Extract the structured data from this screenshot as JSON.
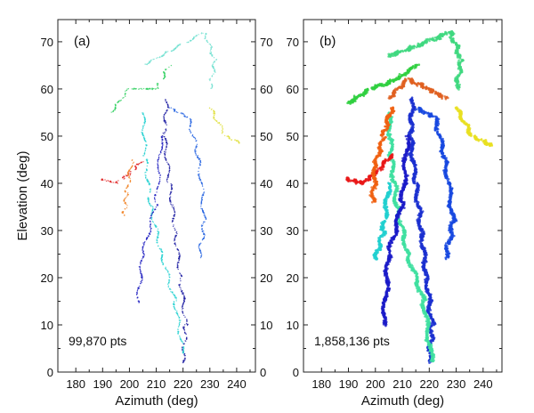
{
  "chart_data": [
    {
      "type": "scatter",
      "panel_label": "(a)",
      "annotation": "99,870 pts",
      "xlabel": "Azimuth (deg)",
      "ylabel": "Elevation (deg)",
      "xlim": [
        173.3,
        247
      ],
      "ylim": [
        0,
        74.7
      ],
      "xticks": [
        180,
        190,
        200,
        210,
        220,
        230,
        240
      ],
      "yticks": [
        0,
        10,
        20,
        30,
        40,
        50,
        60,
        70
      ],
      "right_yticks": true,
      "grid": false,
      "colormap": "jet",
      "branches": [
        {
          "color": "#1a1aa0",
          "points": [
            [
              220,
              2
            ],
            [
              221,
              10
            ],
            [
              219,
              20
            ],
            [
              217,
              30
            ],
            [
              215,
              40
            ],
            [
              213,
              50
            ],
            [
              214,
              58
            ]
          ]
        },
        {
          "color": "#20d0d0",
          "points": [
            [
              220,
              4
            ],
            [
              217,
              15
            ],
            [
              212,
              25
            ],
            [
              208,
              35
            ],
            [
              206,
              45
            ],
            [
              205,
              55
            ]
          ]
        },
        {
          "color": "#e02020",
          "points": [
            [
              205,
              45
            ],
            [
              200,
              42
            ],
            [
              195,
              40
            ],
            [
              189,
              41
            ]
          ]
        },
        {
          "color": "#f08020",
          "points": [
            [
              201,
              45
            ],
            [
              199,
              38
            ],
            [
              198,
              33
            ]
          ]
        },
        {
          "color": "#30d060",
          "points": [
            [
              193,
              55
            ],
            [
              200,
              60
            ],
            [
              210,
              60
            ],
            [
              215,
              65
            ]
          ]
        },
        {
          "color": "#70e0d0",
          "points": [
            [
              205,
              65
            ],
            [
              215,
              68
            ],
            [
              228,
              72
            ],
            [
              232,
              66
            ],
            [
              230,
              60
            ]
          ]
        },
        {
          "color": "#2060e0",
          "points": [
            [
              215,
              56
            ],
            [
              222,
              54
            ],
            [
              226,
              45
            ],
            [
              228,
              32
            ],
            [
              226,
              24
            ]
          ]
        },
        {
          "color": "#e0e040",
          "points": [
            [
              230,
              56
            ],
            [
              236,
              50
            ],
            [
              243,
              48
            ]
          ]
        },
        {
          "color": "#2020c0",
          "points": [
            [
              212,
              50
            ],
            [
              210,
              36
            ],
            [
              205,
              25
            ],
            [
              203,
              14
            ]
          ]
        }
      ]
    },
    {
      "type": "scatter",
      "panel_label": "(b)",
      "annotation": "1,858,136 pts",
      "xlabel": "Azimuth (deg)",
      "ylabel": "",
      "xlim": [
        173.3,
        247
      ],
      "ylim": [
        0,
        74.7
      ],
      "xticks": [
        180,
        190,
        200,
        210,
        220,
        230,
        240
      ],
      "yticks": [
        0,
        10,
        20,
        30,
        40,
        50,
        60,
        70
      ],
      "right_yticks": false,
      "grid": false,
      "colormap": "jet",
      "branches": [
        {
          "color": "#1a30d0",
          "points": [
            [
              220,
              2
            ],
            [
              221,
              10
            ],
            [
              219,
              20
            ],
            [
              217,
              30
            ],
            [
              215,
              40
            ],
            [
              213,
              50
            ],
            [
              214,
              58
            ]
          ]
        },
        {
          "color": "#40e0a0",
          "points": [
            [
              221,
              2
            ],
            [
              218,
              15
            ],
            [
              212,
              25
            ],
            [
              208,
              35
            ],
            [
              206,
              45
            ],
            [
              205,
              55
            ]
          ]
        },
        {
          "color": "#e81818",
          "points": [
            [
              206,
              46
            ],
            [
              200,
              42
            ],
            [
              195,
              40
            ],
            [
              189,
              41
            ]
          ]
        },
        {
          "color": "#f06010",
          "points": [
            [
              206,
              56
            ],
            [
              203,
              50
            ],
            [
              200,
              44
            ],
            [
              199,
              36
            ]
          ]
        },
        {
          "color": "#30d040",
          "points": [
            [
              190,
              57
            ],
            [
              198,
              60
            ],
            [
              208,
              62
            ],
            [
              215,
              65
            ]
          ]
        },
        {
          "color": "#40d880",
          "points": [
            [
              205,
              67
            ],
            [
              215,
              69
            ],
            [
              228,
              72
            ],
            [
              232,
              66
            ],
            [
              230,
              60
            ]
          ]
        },
        {
          "color": "#e06020",
          "points": [
            [
              205,
              58
            ],
            [
              212,
              62
            ],
            [
              220,
              60
            ],
            [
              226,
              58
            ]
          ]
        },
        {
          "color": "#1848e0",
          "points": [
            [
              215,
              56
            ],
            [
              222,
              54
            ],
            [
              226,
              45
            ],
            [
              229,
              32
            ],
            [
              226,
              24
            ]
          ]
        },
        {
          "color": "#e8e020",
          "points": [
            [
              230,
              56
            ],
            [
              236,
              50
            ],
            [
              243,
              48
            ]
          ]
        },
        {
          "color": "#1a1ac8",
          "points": [
            [
              212,
              50
            ],
            [
              210,
              36
            ],
            [
              205,
              25
            ],
            [
              203,
              10
            ]
          ]
        },
        {
          "color": "#20d0d0",
          "points": [
            [
              205,
              40
            ],
            [
              203,
              30
            ],
            [
              200,
              24
            ]
          ]
        }
      ]
    }
  ]
}
